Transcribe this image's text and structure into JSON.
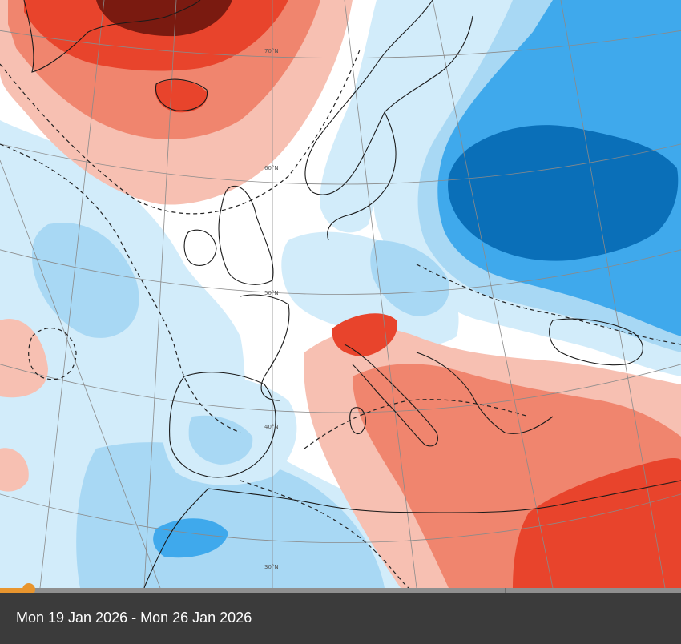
{
  "map": {
    "latitude_labels": [
      "70°N",
      "60°N",
      "50°N",
      "40°N",
      "30°N"
    ]
  },
  "timeline": {
    "progress": 0.042
  },
  "caption": {
    "period": "Mon 19 Jan 2026 - Mon 26 Jan 2026"
  },
  "colors": {
    "warm_strong": "#7a1a10",
    "warm_high": "#e8442c",
    "warm_mid": "#f0856e",
    "warm_light": "#f7c0b2",
    "neutral": "#ffffff",
    "cold_light": "#d2ecfa",
    "cold_mid": "#a8d8f4",
    "cold_high": "#3fa9ec",
    "cold_strong": "#0a6fb8",
    "accent": "#e8952e",
    "caption_bg": "#3b3b3b"
  }
}
